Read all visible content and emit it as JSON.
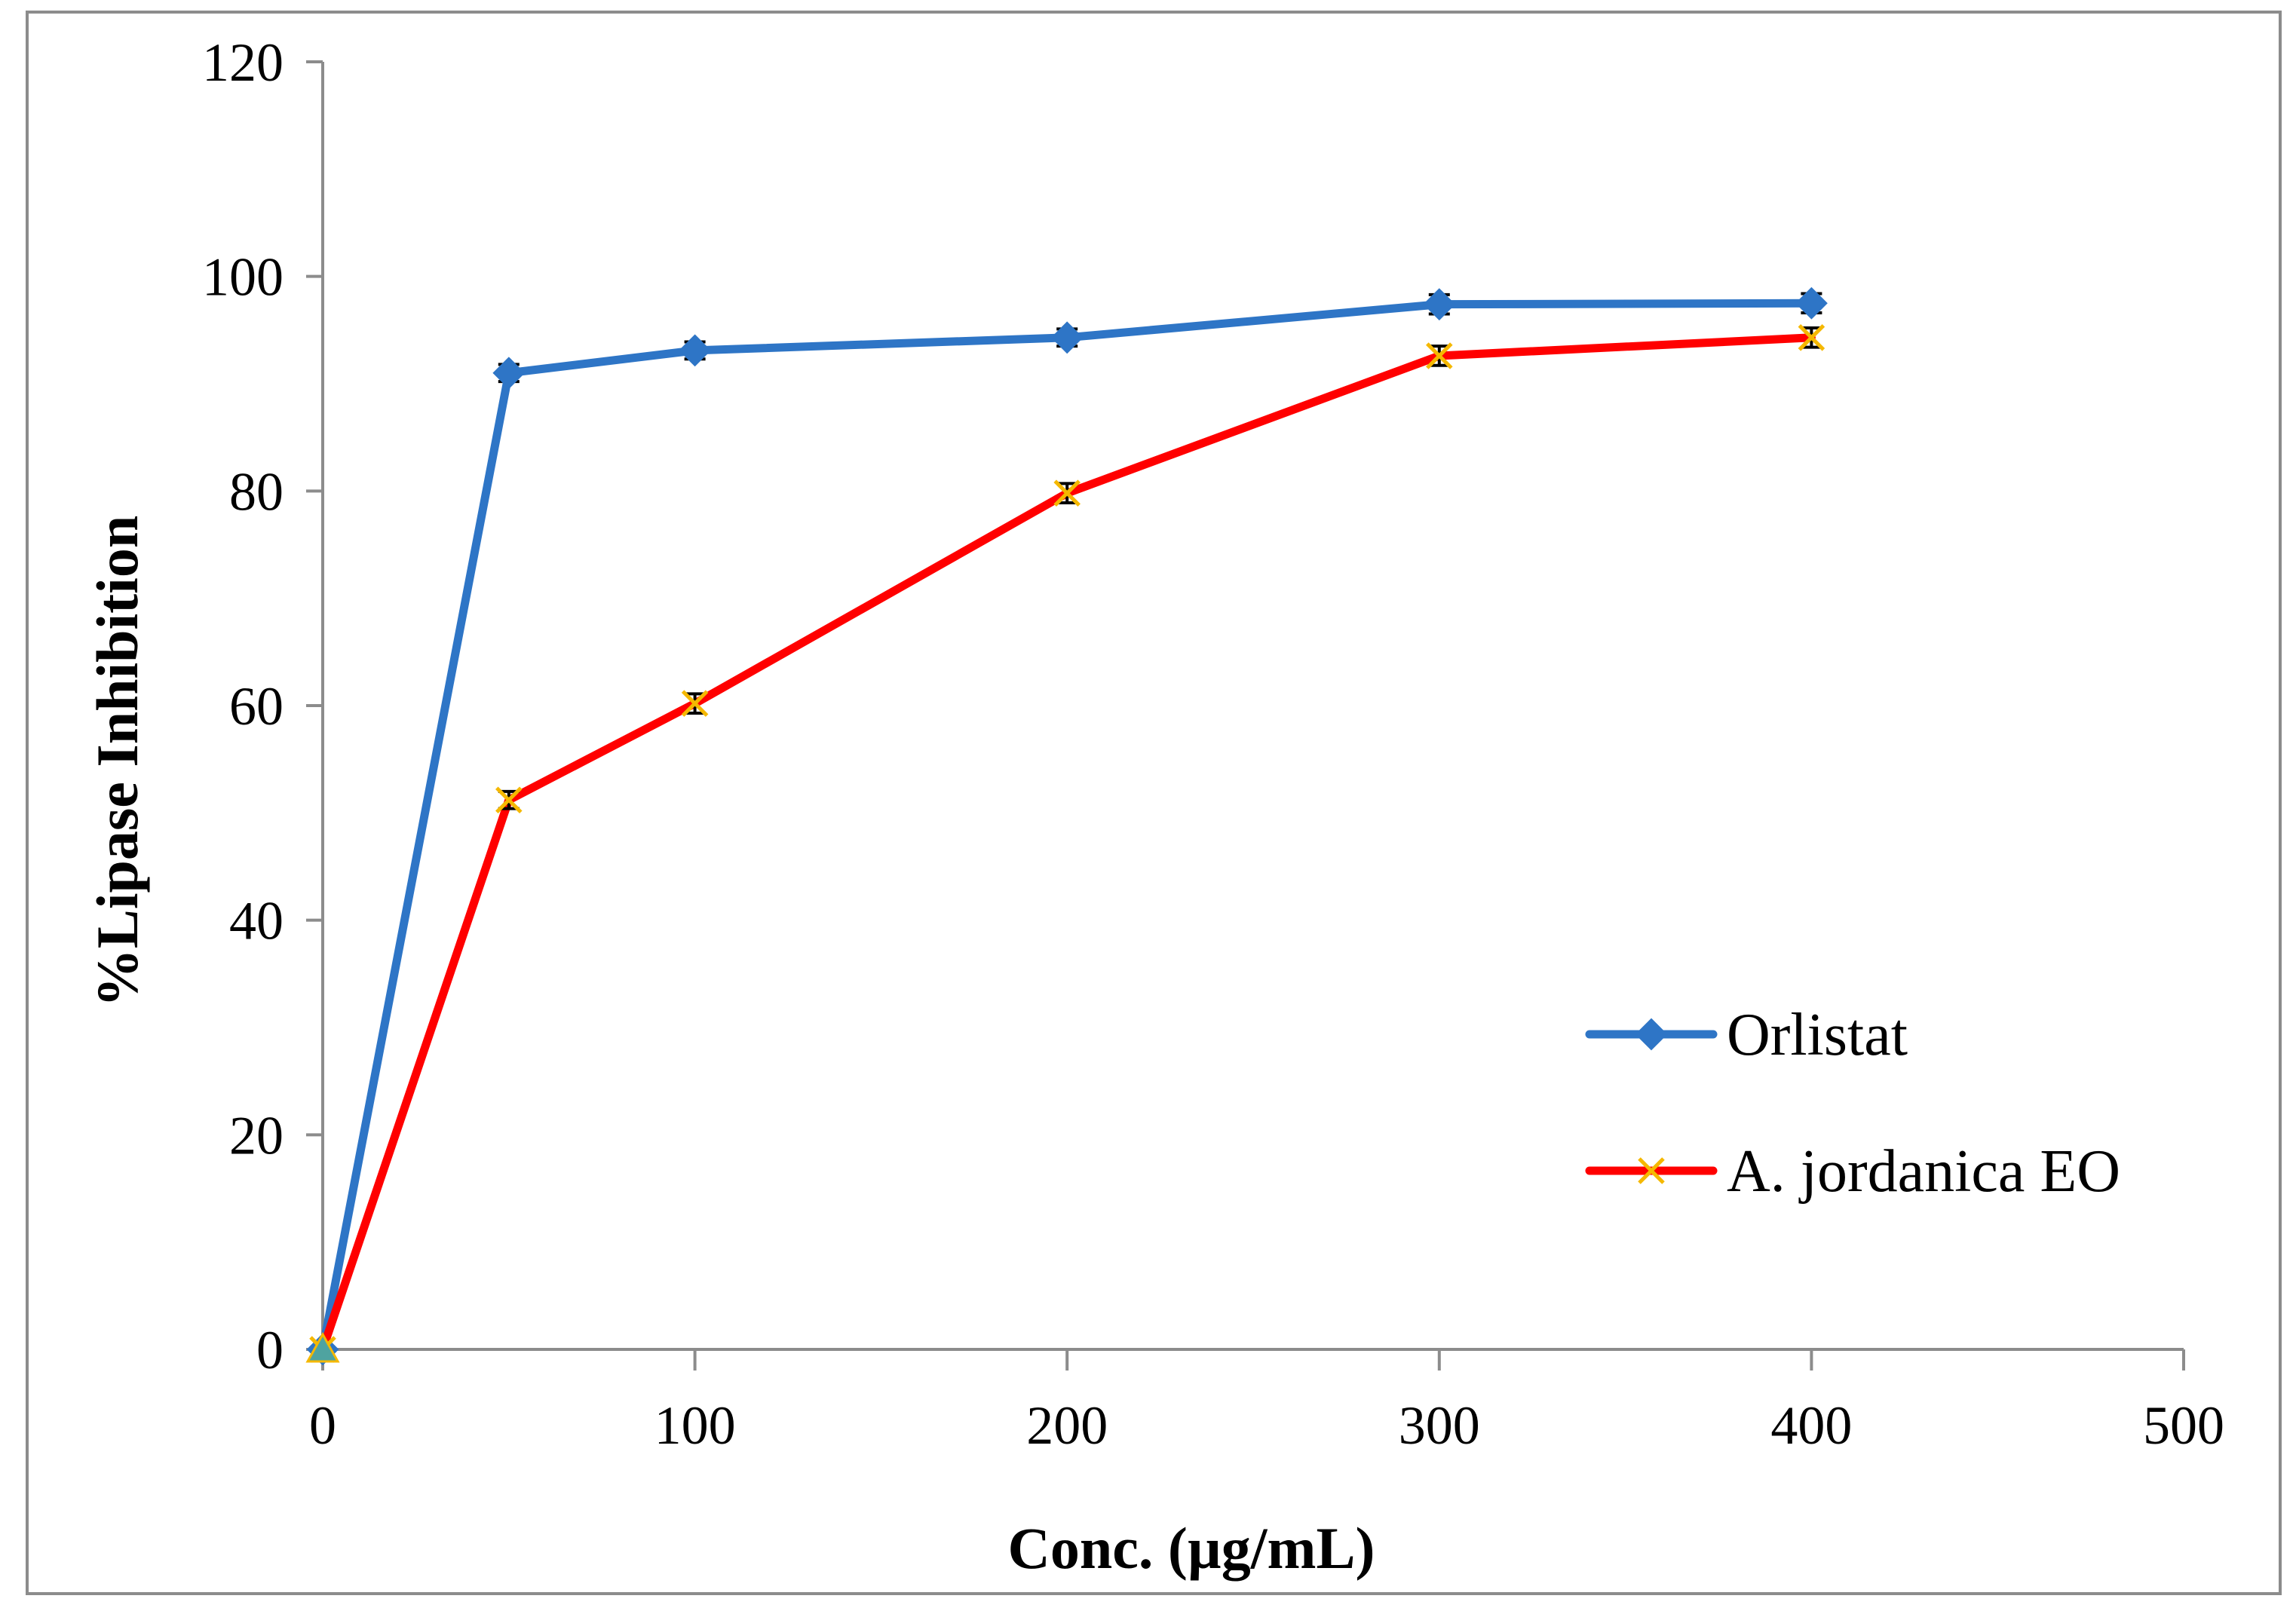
{
  "chart_data": {
    "type": "line",
    "title": "",
    "xlabel": "Conc. (µg/mL)",
    "ylabel": "%Lipase Inhibition",
    "xlim": [
      0,
      500
    ],
    "ylim": [
      0,
      120
    ],
    "x_ticks": [
      0,
      100,
      200,
      300,
      400,
      500
    ],
    "y_ticks": [
      0,
      20,
      40,
      60,
      80,
      100,
      120
    ],
    "grid": false,
    "legend_position": "right",
    "series": [
      {
        "name": "Orlistat",
        "color": "#2e75c6",
        "marker": "diamond",
        "x": [
          0,
          50,
          100,
          200,
          300,
          400
        ],
        "y": [
          0,
          91,
          93.1,
          94.3,
          97.4,
          97.5
        ],
        "error": [
          0,
          0.8,
          0.8,
          0.8,
          0.9,
          0.9
        ]
      },
      {
        "name": "A. jordanica EO",
        "color": "#ff0000",
        "marker": "x",
        "marker_color": "#f5b800",
        "x": [
          0,
          50,
          100,
          200,
          300,
          400
        ],
        "y": [
          0,
          51.2,
          60.2,
          79.8,
          92.6,
          94.3
        ],
        "error": [
          0,
          0.8,
          0.9,
          0.9,
          0.9,
          0.9
        ]
      }
    ]
  }
}
